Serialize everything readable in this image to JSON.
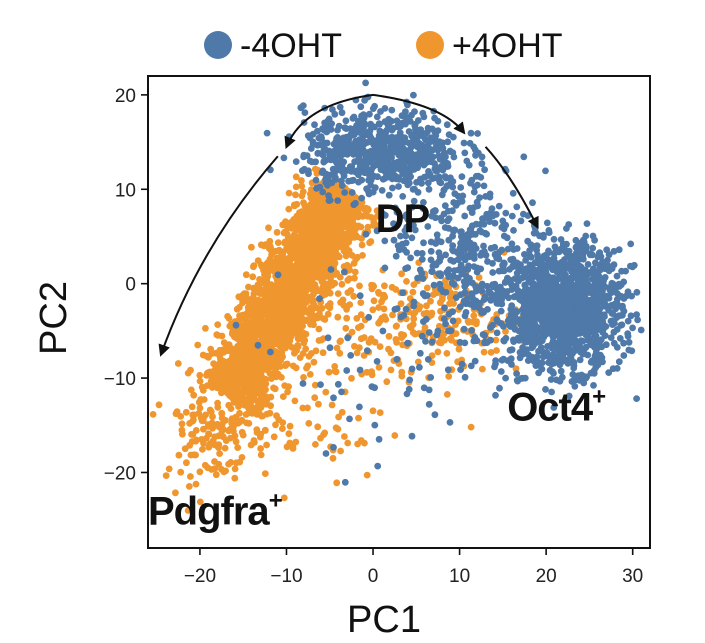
{
  "chart_data": {
    "type": "scatter",
    "title": "",
    "xlabel": "PC1",
    "ylabel": "PC2",
    "xlim": [
      -26,
      32
    ],
    "ylim": [
      -28,
      22
    ],
    "xticks": [
      -20,
      -10,
      0,
      10,
      20,
      30
    ],
    "yticks": [
      -20,
      -10,
      0,
      10,
      20
    ],
    "grid": false,
    "legend_position": "top",
    "series": [
      {
        "name": "-4OHT",
        "color": "#4f79a8",
        "clusters": [
          {
            "cx": 1,
            "cy": 14,
            "sx": 4.5,
            "sy": 2.2,
            "n": 650
          },
          {
            "cx": 22,
            "cy": -2.5,
            "sx": 3.3,
            "sy": 3.2,
            "n": 1400
          },
          {
            "cx": 10,
            "cy": 5,
            "sx": 4,
            "sy": 4,
            "n": 260
          },
          {
            "cx": 14,
            "cy": -2,
            "sx": 3.5,
            "sy": 4,
            "n": 150
          },
          {
            "cx": 2,
            "cy": -9,
            "sx": 6,
            "sy": 6,
            "n": 70
          }
        ]
      },
      {
        "name": "+4OHT",
        "color": "#f0962f",
        "band": {
          "from": [
            -16.5,
            -12
          ],
          "to": [
            -3,
            10
          ],
          "width": 3.6,
          "n": 2400
        },
        "clusters": [
          {
            "cx": -18,
            "cy": -15,
            "sx": 3.2,
            "sy": 3,
            "n": 180
          },
          {
            "cx": 8,
            "cy": -3.5,
            "sx": 4.5,
            "sy": 2.5,
            "n": 180
          },
          {
            "cx": 0,
            "cy": -5,
            "sx": 5,
            "sy": 4,
            "n": 90
          },
          {
            "cx": -7,
            "cy": -12,
            "sx": 4,
            "sy": 5,
            "n": 80
          }
        ]
      }
    ],
    "annotations": [
      {
        "text": "DP",
        "x": 0.3,
        "y": 5.5
      },
      {
        "text": "Oct4",
        "sup": "+",
        "x": 15.5,
        "y": -14.5
      },
      {
        "text": "Pdgfra",
        "sup": "+",
        "x": -26,
        "y": -25.5
      }
    ],
    "arrows": [
      {
        "from": [
          0,
          20
        ],
        "ctrl": [
          -8,
          19
        ],
        "to": [
          -10,
          14.5
        ]
      },
      {
        "from": [
          0,
          20
        ],
        "ctrl": [
          8,
          19
        ],
        "to": [
          10.5,
          16
        ]
      },
      {
        "from": [
          -11,
          13.5
        ],
        "ctrl": [
          -20,
          4
        ],
        "to": [
          -24.5,
          -7.5
        ]
      },
      {
        "from": [
          13,
          14.5
        ],
        "ctrl": [
          16,
          11.5
        ],
        "to": [
          19,
          6
        ]
      }
    ]
  }
}
